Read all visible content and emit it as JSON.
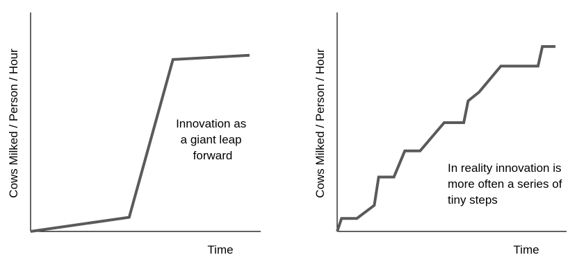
{
  "colors": {
    "axis": "#000000",
    "line": "#5a5a5a",
    "text": "#000000",
    "background": "#ffffff"
  },
  "chart_data": [
    {
      "type": "line",
      "title": "",
      "xlabel": "Time",
      "ylabel": "Cows Milked / Person / Hour",
      "xlim": [
        0,
        100
      ],
      "ylim": [
        0,
        100
      ],
      "grid": false,
      "series": [
        {
          "x": [
            0,
            45,
            65,
            100
          ],
          "y": [
            0,
            6.5,
            79,
            81
          ]
        }
      ],
      "annotation": {
        "lines": [
          "Innovation as",
          "a giant leap",
          "forward"
        ]
      }
    },
    {
      "type": "line",
      "title": "",
      "xlabel": "Time",
      "ylabel": "Cows Milked / Person / Hour",
      "xlim": [
        0,
        100
      ],
      "ylim": [
        0,
        100
      ],
      "grid": false,
      "series": [
        {
          "x": [
            0,
            2,
            9,
            17,
            19,
            26,
            31,
            38,
            49,
            58,
            60,
            65,
            75,
            92,
            94,
            100
          ],
          "y": [
            0,
            6,
            6,
            12,
            25,
            25,
            37,
            37,
            50,
            50,
            60,
            64,
            76,
            76,
            85,
            85
          ]
        }
      ],
      "annotation": {
        "lines": [
          "In reality innovation is",
          "more often a series of",
          "tiny steps"
        ]
      }
    }
  ]
}
